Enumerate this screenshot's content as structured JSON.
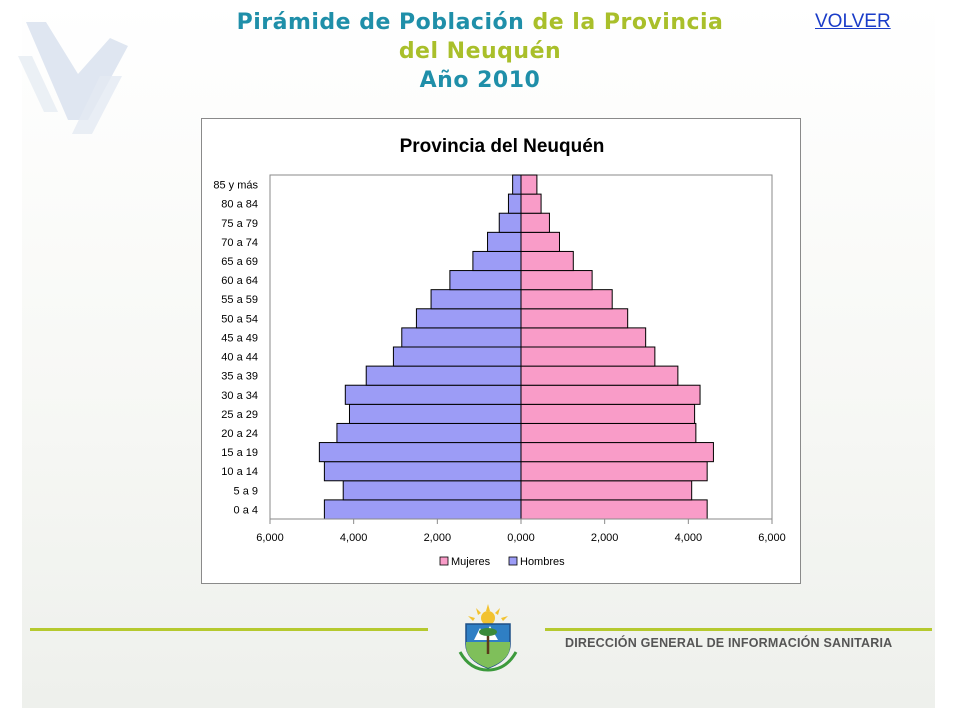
{
  "header": {
    "title_part1": "Pirámide de Población",
    "title_part2": "de la Provincia",
    "title_line2": "del Neuquén",
    "title_line3": "Año 2010",
    "volver_label": "VOLVER"
  },
  "footer": {
    "org_name": "DIRECCIÓN GENERAL DE INFORMACIÓN SANITARIA"
  },
  "colors": {
    "mujeres": "#f99cc8",
    "hombres": "#9c9cf6",
    "accent_green": "#b5c92e",
    "title_blue": "#1f8fa9"
  },
  "chart_data": {
    "type": "bar",
    "orientation": "horizontal-population-pyramid",
    "title": "Provincia del Neuquén",
    "categories": [
      "0 a 4",
      "5 a 9",
      "10 a 14",
      "15 a 19",
      "20 a 24",
      "25 a 29",
      "30 a 34",
      "35 a 39",
      "40 a 44",
      "45 a 49",
      "50 a 54",
      "55 a 59",
      "60 a 64",
      "65 a 69",
      "70 a 74",
      "75 a 79",
      "80 a 84",
      "85 y más"
    ],
    "series": [
      {
        "name": "Mujeres",
        "color": "#f99cc8",
        "values": [
          4450,
          4080,
          4450,
          4600,
          4180,
          4150,
          4280,
          3750,
          3200,
          2980,
          2550,
          2180,
          1700,
          1250,
          920,
          680,
          480,
          380
        ]
      },
      {
        "name": "Hombres",
        "color": "#9c9cf6",
        "values": [
          4700,
          4250,
          4700,
          4820,
          4400,
          4100,
          4200,
          3700,
          3050,
          2850,
          2500,
          2150,
          1700,
          1150,
          800,
          520,
          300,
          200
        ]
      }
    ],
    "xlim": [
      -6000,
      6000
    ],
    "x_ticks": [
      -6000,
      -4000,
      -2000,
      0,
      2000,
      4000,
      6000
    ],
    "x_tick_labels": [
      "6,000",
      "4,000",
      "2,000",
      "0,000",
      "2,000",
      "4,000",
      "6,000"
    ],
    "legend": [
      "Mujeres",
      "Hombres"
    ],
    "legend_position": "bottom",
    "grid": false
  }
}
